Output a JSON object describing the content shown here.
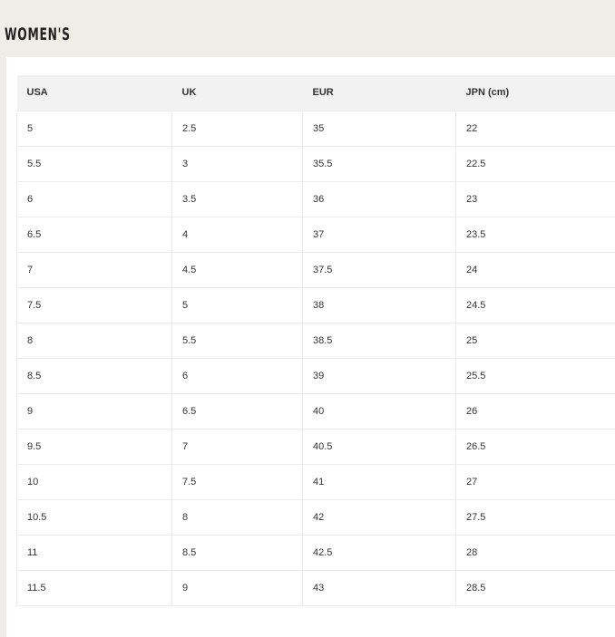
{
  "title": "WOMEN'S",
  "headers": [
    "USA",
    "UK",
    "EUR",
    "JPN (cm)"
  ],
  "rows": [
    [
      "5",
      "2.5",
      "35",
      "22"
    ],
    [
      "5.5",
      "3",
      "35.5",
      "22.5"
    ],
    [
      "6",
      "3.5",
      "36",
      "23"
    ],
    [
      "6.5",
      "4",
      "37",
      "23.5"
    ],
    [
      "7",
      "4.5",
      "37.5",
      "24"
    ],
    [
      "7.5",
      "5",
      "38",
      "24.5"
    ],
    [
      "8",
      "5.5",
      "38.5",
      "25"
    ],
    [
      "8.5",
      "6",
      "39",
      "25.5"
    ],
    [
      "9",
      "6.5",
      "40",
      "26"
    ],
    [
      "9.5",
      "7",
      "40.5",
      "26.5"
    ],
    [
      "10",
      "7.5",
      "41",
      "27"
    ],
    [
      "10.5",
      "8",
      "42",
      "27.5"
    ],
    [
      "11",
      "8.5",
      "42.5",
      "28"
    ],
    [
      "11.5",
      "9",
      "43",
      "28.5"
    ]
  ]
}
